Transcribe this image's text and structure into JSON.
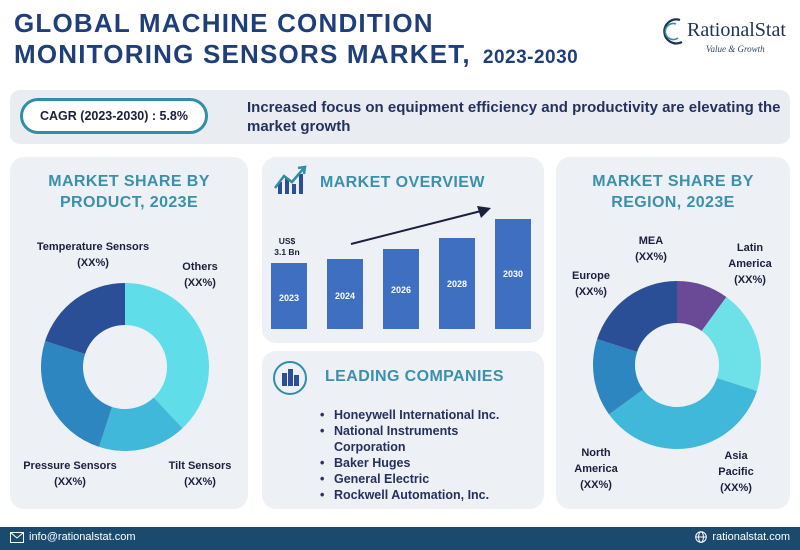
{
  "header": {
    "title_line1": "Global Machine Condition",
    "title_line2": "Monitoring Sensors Market,",
    "title_years": "2023-2030",
    "brand_name": "RationalStat",
    "brand_tagline": "Value & Growth"
  },
  "summary": {
    "cagr": "CAGR (2023-2030) : 5.8%",
    "tagline": "Increased focus on equipment efficiency and productivity are elevating the market growth"
  },
  "product_panel": {
    "title": "Market Share by Product, 2023E",
    "labels": {
      "temperature": "Temperature Sensors",
      "others": "Others",
      "pressure": "Pressure Sensors",
      "tilt": "Tilt Sensors",
      "value": "(XX%)"
    }
  },
  "overview_panel": {
    "title": "Market Overview",
    "start_value": "US$ 3.1 Bn"
  },
  "companies_panel": {
    "title": "Leading Companies",
    "items": [
      "Honeywell International Inc.",
      "National Instruments Corporation",
      "Baker Huges",
      "General Electric",
      "Rockwell Automation, Inc."
    ]
  },
  "region_panel": {
    "title": "Market Share by Region, 2023E",
    "labels": {
      "mea": "MEA",
      "latin_america": "Latin America",
      "europe": "Europe",
      "north_america": "North America",
      "asia_pacific": "Asia Pacific",
      "value": "(XX%)"
    }
  },
  "footer": {
    "email": "info@rationalstat.com",
    "website": "rationalstat.com"
  },
  "chart_data": [
    {
      "type": "pie",
      "title": "Market Share by Product, 2023E",
      "donut": true,
      "categories": [
        "Temperature Sensors",
        "Others",
        "Tilt Sensors",
        "Pressure Sensors"
      ],
      "values": [
        38,
        17,
        25,
        20
      ],
      "value_labels": [
        "(XX%)",
        "(XX%)",
        "(XX%)",
        "(XX%)"
      ],
      "colors": [
        "#5fdde8",
        "#3fb8d9",
        "#2e86c1",
        "#2a4f96"
      ]
    },
    {
      "type": "bar",
      "title": "Market Overview",
      "categories": [
        "2023",
        "2024",
        "2026",
        "2028",
        "2030"
      ],
      "values": [
        3.1,
        3.3,
        3.8,
        4.3,
        5.2
      ],
      "first_value_label": "US$ 3.1 Bn",
      "trend_arrow": true,
      "color": "#3f6fc1"
    },
    {
      "type": "pie",
      "title": "Market Share by Region, 2023E",
      "donut": true,
      "categories": [
        "MEA",
        "Latin America",
        "Asia Pacific",
        "North America",
        "Europe"
      ],
      "values": [
        10,
        20,
        35,
        15,
        20
      ],
      "value_labels": [
        "(XX%)",
        "(XX%)",
        "(XX%)",
        "(XX%)",
        "(XX%)"
      ],
      "colors": [
        "#6a4a96",
        "#6ee0e8",
        "#3fb8d9",
        "#2e86c1",
        "#2a4f96"
      ]
    }
  ]
}
